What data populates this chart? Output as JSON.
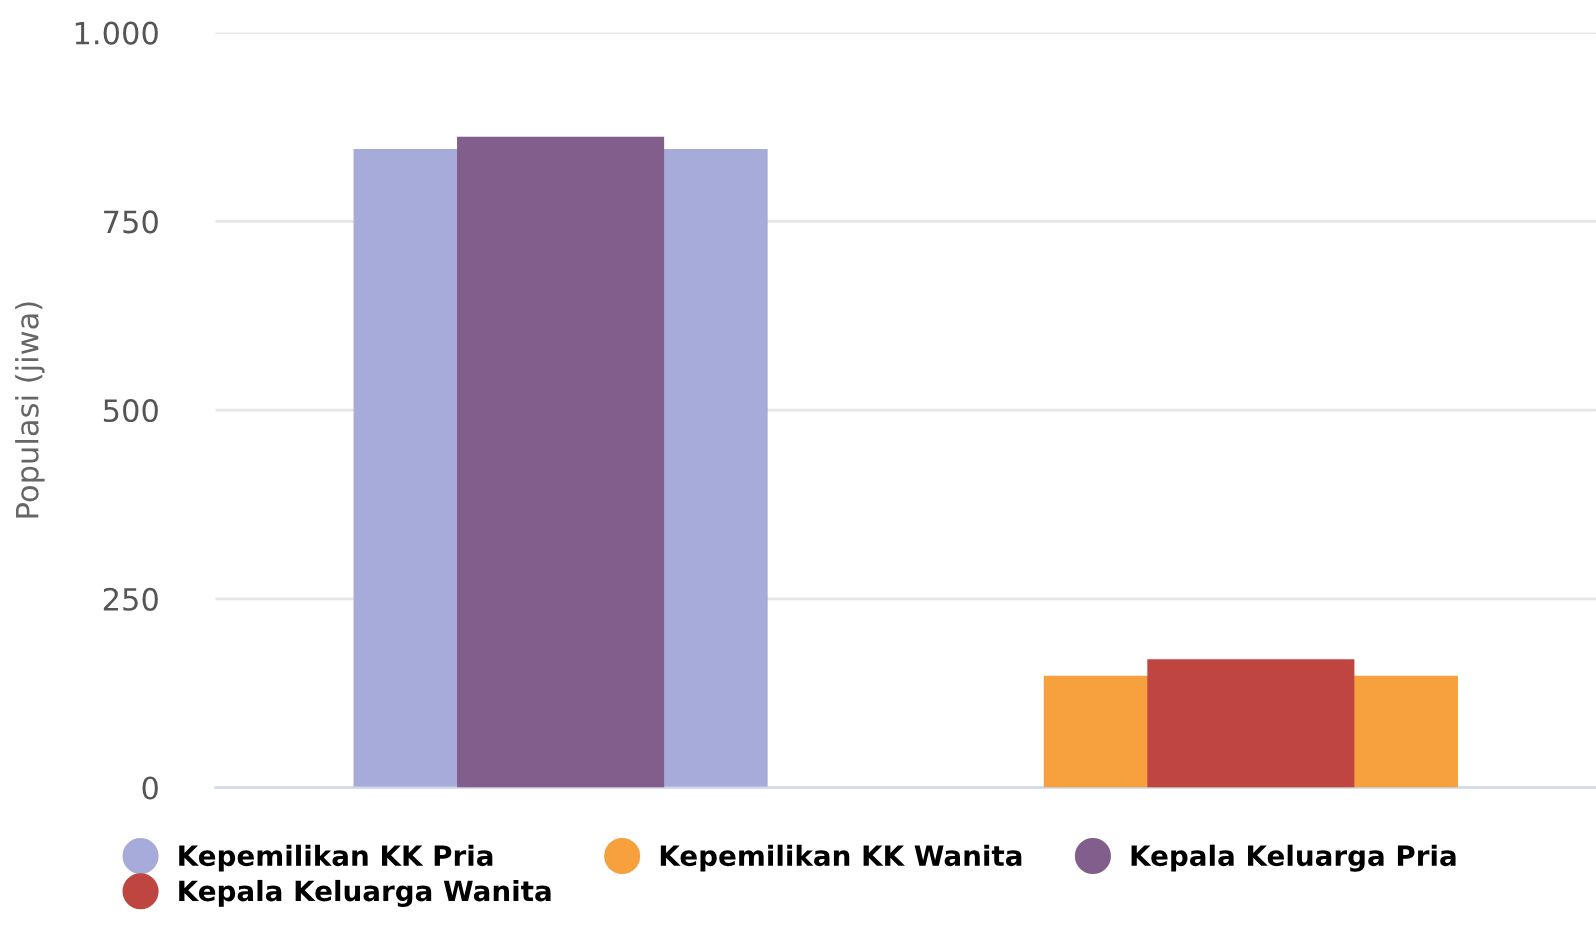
{
  "chart_data": {
    "type": "bar",
    "ylabel": "Populasi (jiwa)",
    "categories": [
      null,
      null
    ],
    "series": [
      {
        "name": "Kepemilikan KK Pria",
        "color": "#a6abd9",
        "values": [
          846,
          null
        ]
      },
      {
        "name": "Kepemilikan KK Wanita",
        "color": "#f7a13e",
        "values": [
          null,
          148
        ]
      },
      {
        "name": "Kepala Keluarga Pria",
        "color": "#815e8b",
        "values": [
          862,
          null
        ]
      },
      {
        "name": "Kepala Keluarga Wanita",
        "color": "#bf4640",
        "values": [
          null,
          170
        ]
      }
    ],
    "ylim": [
      0,
      1000
    ],
    "yticks": [
      {
        "value": 0,
        "label": "0"
      },
      {
        "value": 250,
        "label": "250"
      },
      {
        "value": 500,
        "label": "500"
      },
      {
        "value": 750,
        "label": "750"
      },
      {
        "value": 1000,
        "label": "1.000"
      }
    ],
    "grid": "y",
    "legend": "bottom",
    "tick_labels": "y"
  }
}
